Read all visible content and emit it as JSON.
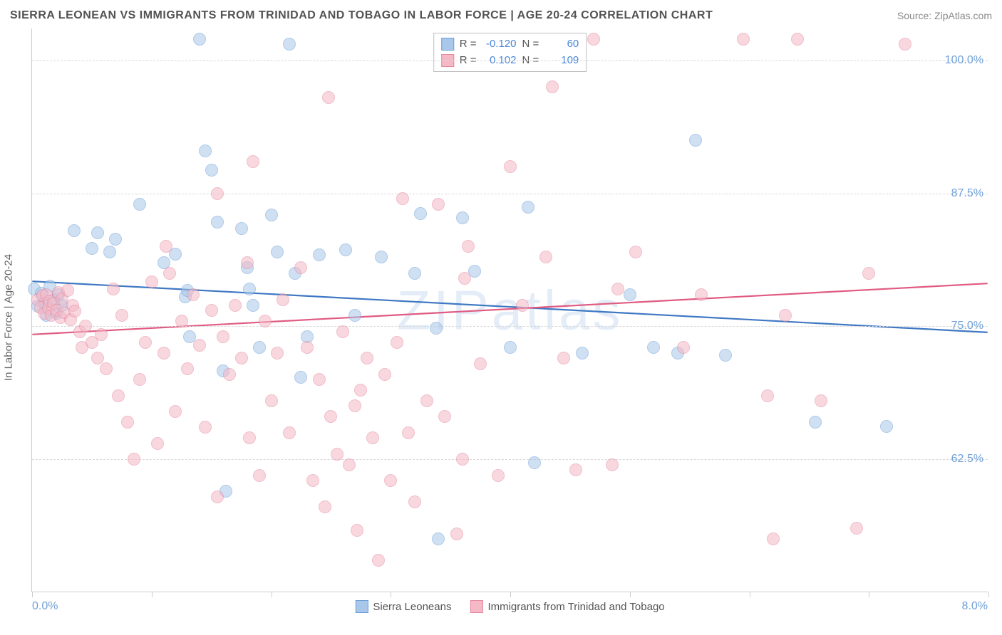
{
  "title": "SIERRA LEONEAN VS IMMIGRANTS FROM TRINIDAD AND TOBAGO IN LABOR FORCE | AGE 20-24 CORRELATION CHART",
  "source_label": "Source: ZipAtlas.com",
  "y_axis_title": "In Labor Force | Age 20-24",
  "watermark": "ZIPatlas",
  "x_axis": {
    "min": 0.0,
    "max": 8.0,
    "min_label": "0.0%",
    "max_label": "8.0%",
    "tick_step": 1.0
  },
  "y_axis": {
    "min": 50.0,
    "max": 103.0,
    "grid_values": [
      62.5,
      75.0,
      87.5,
      100.0
    ],
    "grid_labels": [
      "62.5%",
      "75.0%",
      "87.5%",
      "100.0%"
    ]
  },
  "series": [
    {
      "key": "sierra_leoneans",
      "label": "Sierra Leoneans",
      "fill": "#a9c7ea",
      "stroke": "#6f9fd8",
      "line_color": "#3f78c3",
      "marker_radius": 9,
      "fill_opacity": 0.55,
      "R": "-0.120",
      "N": "60",
      "trend": {
        "y_at_xmin": 79.2,
        "y_at_xmax": 74.4
      },
      "points": [
        [
          0.02,
          78.5
        ],
        [
          0.05,
          76.9
        ],
        [
          0.08,
          78.1
        ],
        [
          0.1,
          77.2
        ],
        [
          0.12,
          76.0
        ],
        [
          0.15,
          78.8
        ],
        [
          0.18,
          77.5
        ],
        [
          0.2,
          76.2
        ],
        [
          0.22,
          78.0
        ],
        [
          0.25,
          77.0
        ],
        [
          0.35,
          84.0
        ],
        [
          0.5,
          82.3
        ],
        [
          0.55,
          83.8
        ],
        [
          0.65,
          82.0
        ],
        [
          0.7,
          83.2
        ],
        [
          0.9,
          86.5
        ],
        [
          1.1,
          81.0
        ],
        [
          1.2,
          81.8
        ],
        [
          1.28,
          77.8
        ],
        [
          1.3,
          78.4
        ],
        [
          1.32,
          74.0
        ],
        [
          1.4,
          102.0
        ],
        [
          1.45,
          91.5
        ],
        [
          1.5,
          89.7
        ],
        [
          1.55,
          84.8
        ],
        [
          1.6,
          70.8
        ],
        [
          1.62,
          59.5
        ],
        [
          1.75,
          84.2
        ],
        [
          1.8,
          80.5
        ],
        [
          1.82,
          78.5
        ],
        [
          1.85,
          77.0
        ],
        [
          1.9,
          73.0
        ],
        [
          2.0,
          85.5
        ],
        [
          2.05,
          82.0
        ],
        [
          2.15,
          101.5
        ],
        [
          2.2,
          80.0
        ],
        [
          2.25,
          70.2
        ],
        [
          2.3,
          74.0
        ],
        [
          2.4,
          81.7
        ],
        [
          2.62,
          82.2
        ],
        [
          2.7,
          76.0
        ],
        [
          2.92,
          81.5
        ],
        [
          3.2,
          80.0
        ],
        [
          3.25,
          85.6
        ],
        [
          3.38,
          74.8
        ],
        [
          3.4,
          55.0
        ],
        [
          3.6,
          85.2
        ],
        [
          3.7,
          80.2
        ],
        [
          4.0,
          73.0
        ],
        [
          4.15,
          86.2
        ],
        [
          4.2,
          62.2
        ],
        [
          4.6,
          72.5
        ],
        [
          5.0,
          78.0
        ],
        [
          5.2,
          73.0
        ],
        [
          5.4,
          72.5
        ],
        [
          5.55,
          92.5
        ],
        [
          5.8,
          72.3
        ],
        [
          6.55,
          66.0
        ],
        [
          7.15,
          65.6
        ]
      ]
    },
    {
      "key": "trinidad_tobago",
      "label": "Immigrants from Trinidad and Tobago",
      "fill": "#f4b8c6",
      "stroke": "#e48aa0",
      "line_color": "#e05a82",
      "marker_radius": 9,
      "fill_opacity": 0.55,
      "R": "0.102",
      "N": "109",
      "trend": {
        "y_at_xmin": 74.2,
        "y_at_xmax": 79.0
      },
      "points": [
        [
          0.05,
          77.5
        ],
        [
          0.07,
          76.8
        ],
        [
          0.09,
          77.9
        ],
        [
          0.1,
          76.2
        ],
        [
          0.12,
          78.0
        ],
        [
          0.14,
          76.7
        ],
        [
          0.15,
          77.4
        ],
        [
          0.16,
          76.0
        ],
        [
          0.18,
          77.2
        ],
        [
          0.2,
          76.5
        ],
        [
          0.22,
          78.2
        ],
        [
          0.24,
          75.8
        ],
        [
          0.25,
          77.6
        ],
        [
          0.27,
          76.3
        ],
        [
          0.3,
          78.4
        ],
        [
          0.32,
          75.6
        ],
        [
          0.34,
          77.0
        ],
        [
          0.36,
          76.4
        ],
        [
          0.4,
          74.5
        ],
        [
          0.42,
          73.0
        ],
        [
          0.45,
          75.0
        ],
        [
          0.5,
          73.5
        ],
        [
          0.55,
          72.0
        ],
        [
          0.58,
          74.2
        ],
        [
          0.62,
          71.0
        ],
        [
          0.68,
          78.5
        ],
        [
          0.72,
          68.5
        ],
        [
          0.75,
          76.0
        ],
        [
          0.8,
          66.0
        ],
        [
          0.85,
          62.5
        ],
        [
          0.9,
          70.0
        ],
        [
          0.95,
          73.5
        ],
        [
          1.0,
          79.2
        ],
        [
          1.05,
          64.0
        ],
        [
          1.1,
          72.5
        ],
        [
          1.12,
          82.5
        ],
        [
          1.15,
          80.0
        ],
        [
          1.2,
          67.0
        ],
        [
          1.25,
          75.5
        ],
        [
          1.3,
          71.0
        ],
        [
          1.35,
          78.0
        ],
        [
          1.4,
          73.2
        ],
        [
          1.45,
          65.5
        ],
        [
          1.5,
          76.5
        ],
        [
          1.55,
          87.5
        ],
        [
          1.55,
          59.0
        ],
        [
          1.6,
          74.0
        ],
        [
          1.65,
          70.5
        ],
        [
          1.7,
          77.0
        ],
        [
          1.75,
          72.0
        ],
        [
          1.8,
          81.0
        ],
        [
          1.82,
          64.5
        ],
        [
          1.85,
          90.5
        ],
        [
          1.9,
          61.0
        ],
        [
          1.95,
          75.5
        ],
        [
          2.0,
          68.0
        ],
        [
          2.05,
          72.5
        ],
        [
          2.1,
          77.5
        ],
        [
          2.15,
          65.0
        ],
        [
          2.25,
          80.5
        ],
        [
          2.3,
          73.0
        ],
        [
          2.35,
          60.5
        ],
        [
          2.4,
          70.0
        ],
        [
          2.45,
          58.0
        ],
        [
          2.48,
          96.5
        ],
        [
          2.5,
          66.5
        ],
        [
          2.55,
          63.0
        ],
        [
          2.6,
          74.5
        ],
        [
          2.65,
          62.0
        ],
        [
          2.7,
          67.5
        ],
        [
          2.72,
          55.8
        ],
        [
          2.75,
          69.0
        ],
        [
          2.8,
          72.0
        ],
        [
          2.85,
          64.5
        ],
        [
          2.9,
          53.0
        ],
        [
          2.95,
          70.5
        ],
        [
          3.0,
          60.5
        ],
        [
          3.05,
          73.5
        ],
        [
          3.1,
          87.0
        ],
        [
          3.15,
          65.0
        ],
        [
          3.2,
          58.5
        ],
        [
          3.3,
          68.0
        ],
        [
          3.4,
          86.5
        ],
        [
          3.45,
          66.5
        ],
        [
          3.55,
          55.5
        ],
        [
          3.6,
          62.5
        ],
        [
          3.62,
          79.5
        ],
        [
          3.65,
          82.5
        ],
        [
          3.75,
          71.5
        ],
        [
          3.9,
          61.0
        ],
        [
          4.0,
          90.0
        ],
        [
          4.1,
          77.0
        ],
        [
          4.3,
          81.5
        ],
        [
          4.35,
          97.5
        ],
        [
          4.45,
          72.0
        ],
        [
          4.55,
          61.5
        ],
        [
          4.7,
          102.0
        ],
        [
          4.85,
          62.0
        ],
        [
          4.9,
          78.5
        ],
        [
          5.05,
          82.0
        ],
        [
          5.45,
          73.0
        ],
        [
          5.6,
          78.0
        ],
        [
          5.95,
          102.0
        ],
        [
          6.15,
          68.5
        ],
        [
          6.2,
          55.0
        ],
        [
          6.3,
          76.0
        ],
        [
          6.4,
          102.0
        ],
        [
          6.6,
          68.0
        ],
        [
          6.9,
          56.0
        ],
        [
          7.0,
          80.0
        ],
        [
          7.3,
          101.5
        ]
      ]
    }
  ],
  "stats_box": {
    "rows": [
      {
        "swatch_fill": "#a9c7ea",
        "swatch_stroke": "#6f9fd8",
        "r_label": "R =",
        "r_val": "-0.120",
        "n_label": "N =",
        "n_val": "60"
      },
      {
        "swatch_fill": "#f4b8c6",
        "swatch_stroke": "#e48aa0",
        "r_label": "R =",
        "r_val": "0.102",
        "n_label": "N =",
        "n_val": "109"
      }
    ]
  },
  "background_color": "#ffffff",
  "grid_color": "#d8d8d8",
  "axis_color": "#cccccc",
  "tick_label_color": "#6f9fd8"
}
